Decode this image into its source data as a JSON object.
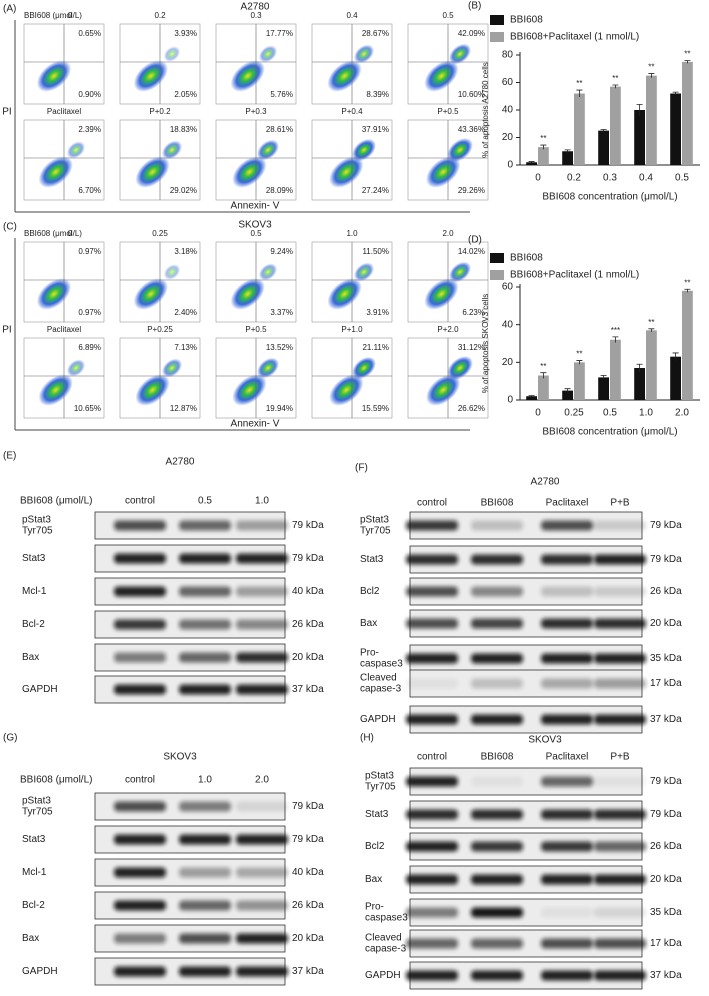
{
  "flow": [
    {
      "label": "(A)",
      "title": "A2780",
      "unit_label": "BBI608 (μmol/L)",
      "y_axis": "PI",
      "x_axis": "Annexin- V",
      "plots": [
        {
          "label": "0",
          "ur": "0.65%",
          "lr": "0.90%"
        },
        {
          "label": "0.2",
          "ur": "3.93%",
          "lr": "2.05%"
        },
        {
          "label": "0.3",
          "ur": "17.77%",
          "lr": "5.76%"
        },
        {
          "label": "0.4",
          "ur": "28.67%",
          "lr": "8.39%"
        },
        {
          "label": "0.5",
          "ur": "42.09%",
          "lr": "10.60%"
        },
        {
          "label": "Paclitaxel",
          "ur": "2.39%",
          "lr": "6.70%"
        },
        {
          "label": "P+0.2",
          "ur": "18.83%",
          "lr": "29.02%"
        },
        {
          "label": "P+0.3",
          "ur": "28.61%",
          "lr": "28.09%"
        },
        {
          "label": "P+0.4",
          "ur": "37.91%",
          "lr": "27.24%"
        },
        {
          "label": "P+0.5",
          "ur": "43.36%",
          "lr": "29.26%"
        }
      ]
    },
    {
      "label": "(C)",
      "title": "SKOV3",
      "unit_label": "BBI608 (μmol/L)",
      "y_axis": "PI",
      "x_axis": "Annexin- V",
      "plots": [
        {
          "label": "0",
          "ur": "0.97%",
          "lr": "0.97%"
        },
        {
          "label": "0.25",
          "ur": "3.18%",
          "lr": "2.40%"
        },
        {
          "label": "0.5",
          "ur": "9.24%",
          "lr": "3.37%"
        },
        {
          "label": "1.0",
          "ur": "11.50%",
          "lr": "3.91%"
        },
        {
          "label": "2.0",
          "ur": "14.02%",
          "lr": "6.23%"
        },
        {
          "label": "Paclitaxel",
          "ur": "6.89%",
          "lr": "10.65%"
        },
        {
          "label": "P+0.25",
          "ur": "7.13%",
          "lr": "12.87%"
        },
        {
          "label": "P+0.5",
          "ur": "13.52%",
          "lr": "19.94%"
        },
        {
          "label": "P+1.0",
          "ur": "21.11%",
          "lr": "15.59%"
        },
        {
          "label": "P+2.0",
          "ur": "31.12%",
          "lr": "26.62%"
        }
      ]
    }
  ],
  "chart_data": [
    {
      "type": "bar",
      "panel_label": "(B)",
      "y_label": "% of apoptosis A2780 cells",
      "x_label": "BBI608 concentration (μmol/L)",
      "categories": [
        "0",
        "0.2",
        "0.3",
        "0.4",
        "0.5"
      ],
      "series": [
        {
          "name": "BBI608",
          "color": "#111111",
          "values": [
            2,
            10,
            25,
            40,
            52
          ],
          "errors": [
            0.5,
            1,
            0.8,
            4,
            1
          ]
        },
        {
          "name": "BBI608+Paclitaxel (1 nmol/L)",
          "color": "#a0a0a0",
          "values": [
            13,
            52,
            57,
            65,
            75
          ],
          "errors": [
            1.5,
            2.5,
            1.2,
            1.5,
            1
          ],
          "annotations": [
            "**",
            "**",
            "**",
            "**",
            "**"
          ]
        }
      ],
      "ylim": [
        0,
        80
      ],
      "yticks": [
        0,
        20,
        40,
        60,
        80
      ]
    },
    {
      "type": "bar",
      "panel_label": "(D)",
      "y_label": "% of apoptosis SKOV3 cells",
      "x_label": "BBI608 concentration (μmol/L)",
      "categories": [
        "0",
        "0.25",
        "0.5",
        "1.0",
        "2.0"
      ],
      "series": [
        {
          "name": "BBI608",
          "color": "#111111",
          "values": [
            2,
            5,
            12,
            17,
            23
          ],
          "errors": [
            0.3,
            1,
            1,
            2,
            2
          ]
        },
        {
          "name": "BBI608+Paclitaxel (1 nmol/L)",
          "color": "#a0a0a0",
          "values": [
            13,
            20,
            32,
            37,
            58
          ],
          "errors": [
            1.5,
            1,
            1.5,
            0.8,
            0.8
          ],
          "annotations": [
            "**",
            "**",
            "***",
            "**",
            "**"
          ]
        }
      ],
      "ylim": [
        0,
        60
      ],
      "yticks": [
        0,
        20,
        40,
        60
      ]
    }
  ],
  "blots": [
    {
      "label": "(E)",
      "title": "A2780",
      "treatment": "BBI608 (μmol/L)",
      "lanes": [
        "control",
        "0.5",
        "1.0"
      ],
      "rows": [
        {
          "name": [
            "pStat3",
            "Tyr705"
          ],
          "kda": "79 kDa"
        },
        {
          "name": [
            "Stat3"
          ],
          "kda": "79 kDa"
        },
        {
          "name": [
            "Mcl-1"
          ],
          "kda": "40 kDa"
        },
        {
          "name": [
            "Bcl-2"
          ],
          "kda": "26 kDa"
        },
        {
          "name": [
            "Bax"
          ],
          "kda": "20 kDa"
        },
        {
          "name": [
            "GAPDH"
          ],
          "kda": "37 kDa"
        }
      ]
    },
    {
      "label": "(F)",
      "title": "A2780",
      "lanes": [
        "control",
        "BBI608",
        "Paclitaxel",
        "P+B"
      ],
      "rows": [
        {
          "name": [
            "pStat3",
            "Tyr705"
          ],
          "kda": "79 kDa"
        },
        {
          "name": [
            "Stat3"
          ],
          "kda": "79 kDa"
        },
        {
          "name": [
            "Bcl2"
          ],
          "kda": "26 kDa"
        },
        {
          "name": [
            "Bax"
          ],
          "kda": "20 kDa"
        },
        {
          "name": [
            "Pro-",
            "caspase3"
          ],
          "kda": "35 kDa"
        },
        {
          "name": [
            "Cleaved",
            "capase-3"
          ],
          "kda": "17 kDa"
        },
        {
          "name": [
            "GAPDH"
          ],
          "kda": "37 kDa"
        }
      ]
    },
    {
      "label": "(G)",
      "title": "SKOV3",
      "treatment": "BBI608 (μmol/L)",
      "lanes": [
        "control",
        "1.0",
        "2.0"
      ],
      "rows": [
        {
          "name": [
            "pStat3",
            "Tyr705"
          ],
          "kda": "79 kDa"
        },
        {
          "name": [
            "Stat3"
          ],
          "kda": "79 kDa"
        },
        {
          "name": [
            "Mcl-1"
          ],
          "kda": "40 kDa"
        },
        {
          "name": [
            "Bcl-2"
          ],
          "kda": "26 kDa"
        },
        {
          "name": [
            "Bax"
          ],
          "kda": "20 kDa"
        },
        {
          "name": [
            "GAPDH"
          ],
          "kda": "37 kDa"
        }
      ]
    },
    {
      "label": "(H)",
      "title": "SKOV3",
      "lanes": [
        "control",
        "BBI608",
        "Paclitaxel",
        "P+B"
      ],
      "rows": [
        {
          "name": [
            "pStat3",
            "Tyr705"
          ],
          "kda": "79 kDa"
        },
        {
          "name": [
            "Stat3"
          ],
          "kda": "79 kDa"
        },
        {
          "name": [
            "Bcl2"
          ],
          "kda": "26 kDa"
        },
        {
          "name": [
            "Bax"
          ],
          "kda": "20 kDa"
        },
        {
          "name": [
            "Pro-",
            "caspase3"
          ],
          "kda": "35 kDa"
        },
        {
          "name": [
            "Cleaved",
            "capase-3"
          ],
          "kda": "17 kDa"
        },
        {
          "name": [
            "GAPDH"
          ],
          "kda": "37 kDa"
        }
      ]
    }
  ]
}
